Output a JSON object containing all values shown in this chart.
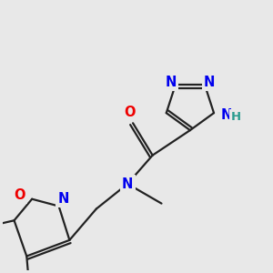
{
  "background_color": "#e8e8e8",
  "bond_color": "#222222",
  "bond_width": 1.6,
  "dbo": 0.012,
  "atom_colors": {
    "N": "#0000ee",
    "O": "#ee0000",
    "NH_color": "#2a9d8f",
    "C": "#222222"
  },
  "fs": 10.5
}
